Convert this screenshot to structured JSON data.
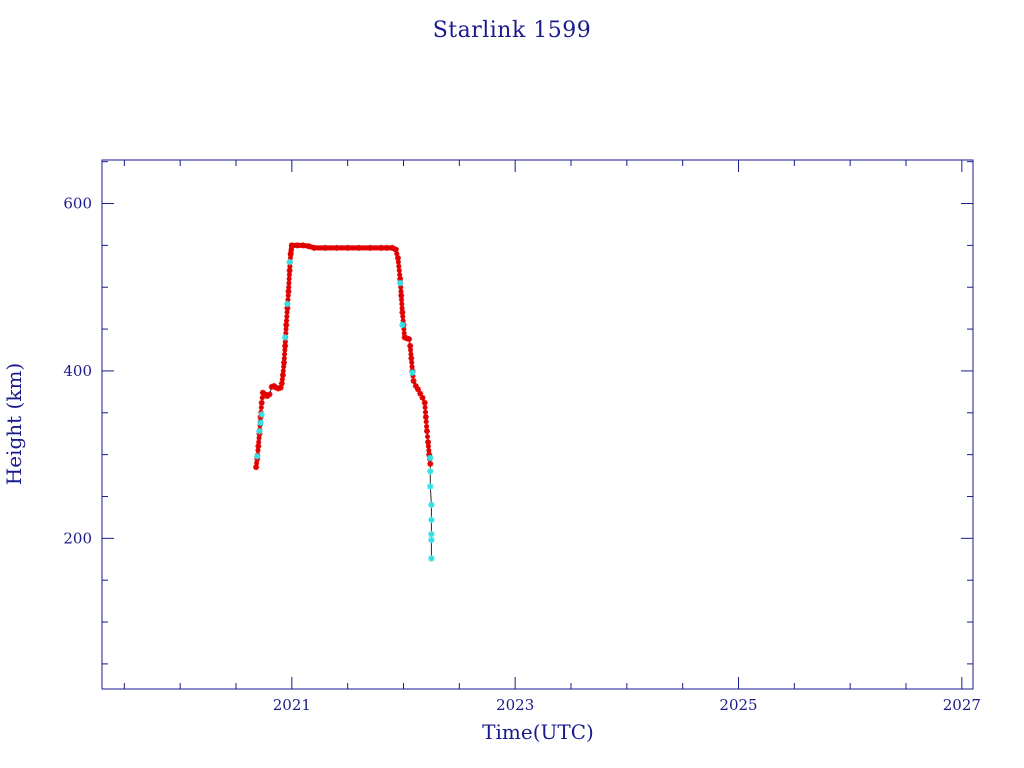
{
  "chart_data": {
    "type": "scatter",
    "title": "Starlink 1599",
    "xlabel": "Time(UTC)",
    "ylabel": "Height (km)",
    "xlim": [
      2019.3,
      2027.1
    ],
    "ylim": [
      20,
      652
    ],
    "x_ticks": [
      2021,
      2023,
      2025,
      2027
    ],
    "x_tick_labels": [
      "2021",
      "2023",
      "2025",
      "2027"
    ],
    "y_ticks": [
      200,
      400,
      600
    ],
    "y_tick_labels": [
      "200",
      "400",
      "600"
    ],
    "colors": {
      "axis": "#1a1a8c",
      "primary_marker": "#e00000",
      "secondary_marker": "#33e0e8",
      "line": "#2a2a2a"
    },
    "series": [
      {
        "values": [
          [
            2020.68,
            285
          ],
          [
            2020.69,
            295
          ],
          [
            2020.7,
            310
          ],
          [
            2020.71,
            325
          ],
          [
            2020.72,
            345
          ],
          [
            2020.73,
            362
          ],
          [
            2020.74,
            374
          ],
          [
            2020.76,
            372
          ],
          [
            2020.78,
            370
          ],
          [
            2020.8,
            372
          ],
          [
            2020.82,
            381
          ],
          [
            2020.84,
            382
          ],
          [
            2020.86,
            380
          ],
          [
            2020.88,
            379
          ],
          [
            2020.9,
            380
          ],
          [
            2020.91,
            385
          ],
          [
            2020.92,
            395
          ],
          [
            2020.93,
            410
          ],
          [
            2020.94,
            430
          ],
          [
            2020.95,
            455
          ],
          [
            2020.96,
            475
          ],
          [
            2020.97,
            495
          ],
          [
            2020.98,
            520
          ],
          [
            2020.99,
            540
          ],
          [
            2021.0,
            550
          ],
          [
            2021.05,
            550
          ],
          [
            2021.1,
            550
          ],
          [
            2021.15,
            549
          ],
          [
            2021.2,
            547
          ],
          [
            2021.3,
            547
          ],
          [
            2021.4,
            547
          ],
          [
            2021.5,
            547
          ],
          [
            2021.6,
            547
          ],
          [
            2021.7,
            547
          ],
          [
            2021.8,
            547
          ],
          [
            2021.85,
            547
          ],
          [
            2021.9,
            547
          ],
          [
            2021.93,
            545
          ],
          [
            2021.95,
            535
          ],
          [
            2021.97,
            510
          ],
          [
            2021.98,
            490
          ],
          [
            2021.99,
            470
          ],
          [
            2022.0,
            455
          ],
          [
            2022.01,
            440
          ],
          [
            2022.03,
            439
          ],
          [
            2022.05,
            438
          ],
          [
            2022.06,
            430
          ],
          [
            2022.07,
            415
          ],
          [
            2022.08,
            400
          ],
          [
            2022.09,
            388
          ],
          [
            2022.11,
            382
          ],
          [
            2022.13,
            378
          ],
          [
            2022.15,
            373
          ],
          [
            2022.17,
            368
          ],
          [
            2022.19,
            362
          ],
          [
            2022.2,
            345
          ],
          [
            2022.21,
            328
          ],
          [
            2022.22,
            315
          ],
          [
            2022.23,
            300
          ],
          [
            2022.24,
            289
          ]
        ]
      },
      {
        "values": [
          [
            2020.69,
            298
          ],
          [
            2020.71,
            328
          ],
          [
            2020.72,
            338
          ],
          [
            2020.73,
            348
          ],
          [
            2020.94,
            440
          ],
          [
            2020.96,
            480
          ],
          [
            2020.98,
            530
          ],
          [
            2021.97,
            505
          ],
          [
            2021.99,
            455
          ],
          [
            2022.08,
            398
          ],
          [
            2022.24,
            296
          ],
          [
            2022.24,
            280
          ],
          [
            2022.24,
            262
          ],
          [
            2022.25,
            240
          ],
          [
            2022.25,
            222
          ],
          [
            2022.25,
            205
          ],
          [
            2022.25,
            198
          ],
          [
            2022.25,
            176
          ]
        ]
      }
    ]
  }
}
